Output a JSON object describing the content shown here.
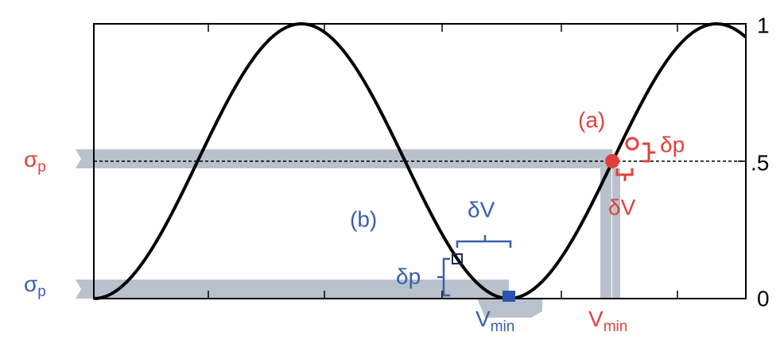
{
  "axis": {
    "ticks": [
      "1",
      ".5",
      "0"
    ]
  },
  "markers": {
    "a": {
      "label": "(a)",
      "dp": "δp",
      "dv": "δV",
      "vmin": {
        "main": "V",
        "sub": "min"
      },
      "sigma": {
        "main": "σ",
        "sub": "p"
      }
    },
    "b": {
      "label": "(b)",
      "dp": "δp",
      "dv": "δV",
      "vmin": {
        "main": "V",
        "sub": "min"
      },
      "sigma": {
        "main": "σ",
        "sub": "p"
      }
    }
  }
}
